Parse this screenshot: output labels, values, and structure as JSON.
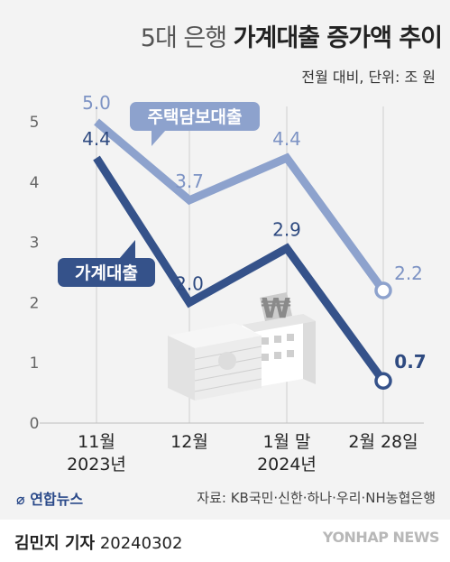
{
  "header": {
    "title_light": "5대 은행",
    "title_bold": "가계대출 증가액 추이",
    "subtitle": "전월 대비, 단위: 조 원"
  },
  "footer": {
    "brand": "연합뉴스",
    "source": "자료: KB국민·신한·하나·우리·NH농협은행",
    "reporter_name": "김민지 기자",
    "date": "20240302",
    "watermark": "YONHAP NEWS"
  },
  "colors": {
    "mortgage": "#8da2cd",
    "household": "#35528a",
    "grid": "#cfcfcf",
    "background": "#f3f3f3"
  },
  "chart_data": {
    "type": "line",
    "categories": [
      "11월\n2023년",
      "12월",
      "1월 말\n2024년",
      "2월 28일"
    ],
    "ylim": [
      0,
      5
    ],
    "yticks": [
      0,
      1,
      2,
      3,
      4,
      5
    ],
    "grid": true,
    "series": [
      {
        "name": "주택담보대출",
        "values": [
          5.0,
          3.7,
          4.4,
          2.2
        ],
        "labels": [
          "5.0",
          "3.7",
          "4.4",
          "2.2"
        ]
      },
      {
        "name": "가계대출",
        "values": [
          4.4,
          2.0,
          2.9,
          0.7
        ],
        "labels": [
          "4.4",
          "2.0",
          "2.9",
          "0.7"
        ]
      }
    ]
  }
}
